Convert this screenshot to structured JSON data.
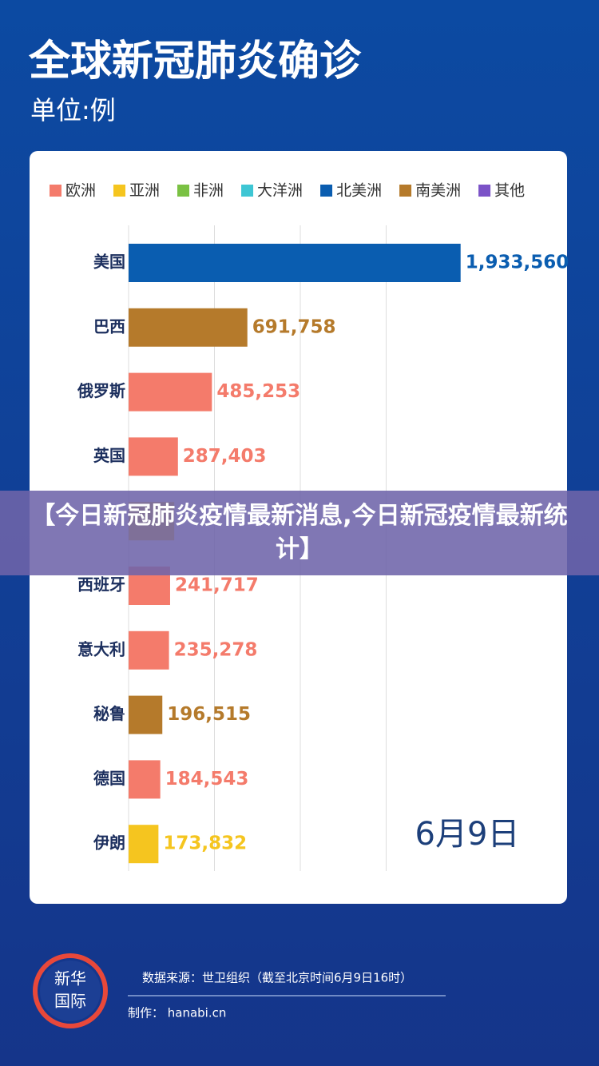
{
  "header": {
    "title": "全球新冠肺炎确诊",
    "subtitle": "单位:例"
  },
  "chart_data": {
    "type": "hbar",
    "legend": [
      {
        "name": "欧洲",
        "color": "#f47b6b"
      },
      {
        "name": "亚洲",
        "color": "#f5c51f"
      },
      {
        "name": "非洲",
        "color": "#7ac143"
      },
      {
        "name": "大洋洲",
        "color": "#3ec6d4"
      },
      {
        "name": "北美洲",
        "color": "#0a5db0"
      },
      {
        "name": "南美洲",
        "color": "#b57a2b"
      },
      {
        "name": "其他",
        "color": "#7b52c7"
      }
    ],
    "categories": [
      "美国",
      "巴西",
      "俄罗斯",
      "英国",
      null,
      "西班牙",
      "意大利",
      "秘鲁",
      "德国",
      "伊朗"
    ],
    "values": [
      1933560,
      691758,
      485253,
      287403,
      266000,
      241717,
      235278,
      196515,
      184543,
      173832
    ],
    "value_labels": [
      "1,933,560",
      "691,758",
      "485,253",
      "287,403",
      null,
      "241,717",
      "235,278",
      "196,515",
      "184,543",
      "173,832"
    ],
    "colors": [
      "#0a5db0",
      "#b57a2b",
      "#f47b6b",
      "#f47b6b",
      "#f5c51f",
      "#f47b6b",
      "#f47b6b",
      "#b57a2b",
      "#f47b6b",
      "#f5c51f"
    ],
    "xlim": [
      0,
      2000000
    ],
    "xticks": [
      0,
      500000,
      1000000,
      1500000
    ],
    "grid": true,
    "annotation": "6月9日"
  },
  "banner": "【今日新冠肺炎疫情最新消息,今日新冠疫情最新统计】",
  "footer": {
    "logo": "新华国际",
    "source": "数据来源：世卫组织（截至北京时间6月9日16时）",
    "maker": "制作： hanabi.cn"
  }
}
